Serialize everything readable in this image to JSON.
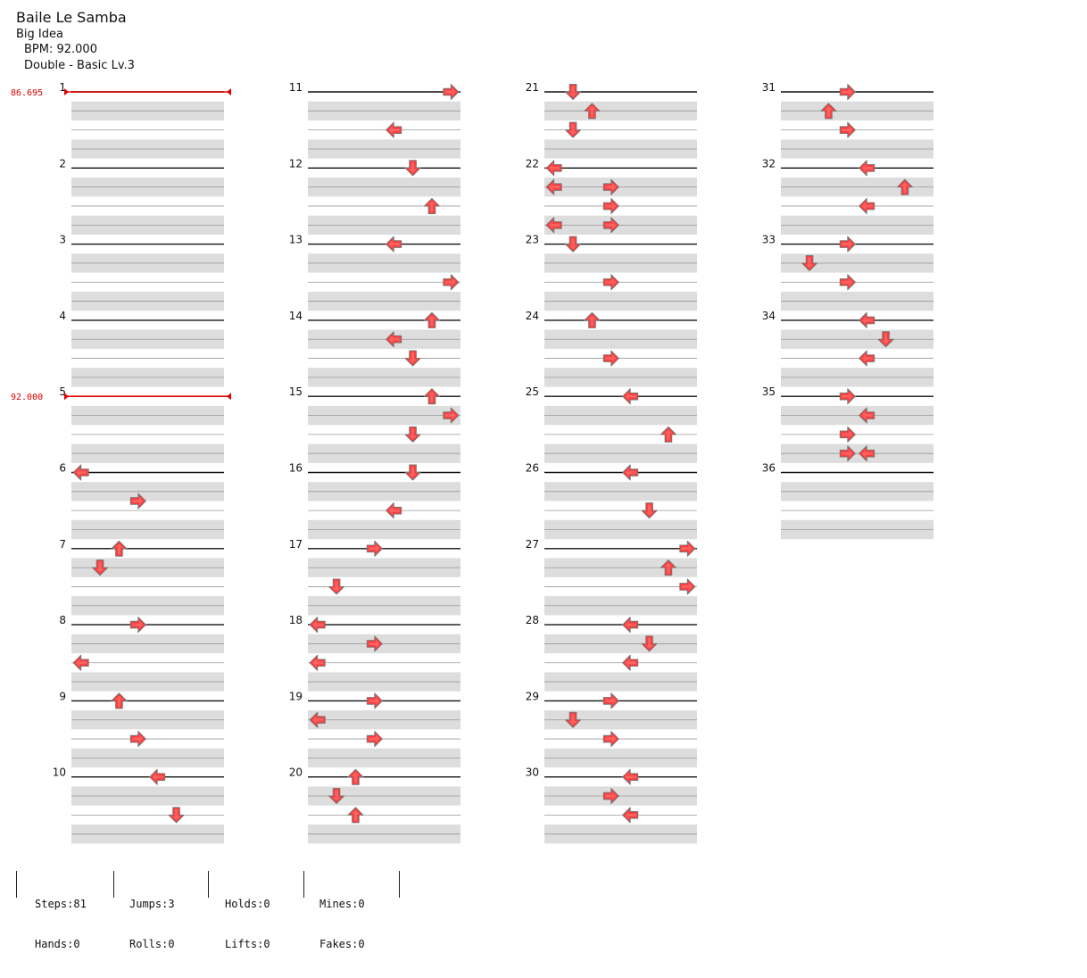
{
  "song": {
    "title": "Baile Le Samba",
    "artist": "Big Idea",
    "bpm_line": "BPM: 92.000",
    "chart_line": "Double - Basic  Lv.3"
  },
  "bpm_changes": [
    {
      "measure": 1,
      "label": "86.695"
    },
    {
      "measure": 5,
      "label": "92.000"
    }
  ],
  "measures": [
    {
      "number": "1",
      "notes": []
    },
    {
      "number": "2",
      "notes": []
    },
    {
      "number": "3",
      "notes": []
    },
    {
      "number": "4",
      "notes": []
    },
    {
      "number": "5",
      "notes": []
    },
    {
      "number": "6",
      "notes": [
        {
          "beat": 0,
          "dir": "left",
          "lane": 0
        },
        {
          "beat": 1.5,
          "dir": "right",
          "lane": 3
        }
      ]
    },
    {
      "number": "7",
      "notes": [
        {
          "beat": 0,
          "dir": "up",
          "lane": 2
        },
        {
          "beat": 1,
          "dir": "down",
          "lane": 1
        }
      ]
    },
    {
      "number": "8",
      "notes": [
        {
          "beat": 0,
          "dir": "right",
          "lane": 3
        },
        {
          "beat": 2,
          "dir": "left",
          "lane": 0
        }
      ]
    },
    {
      "number": "9",
      "notes": [
        {
          "beat": 0,
          "dir": "up",
          "lane": 2
        },
        {
          "beat": 2,
          "dir": "right",
          "lane": 3
        }
      ]
    },
    {
      "number": "10",
      "notes": [
        {
          "beat": 0,
          "dir": "left",
          "lane": 4
        },
        {
          "beat": 2,
          "dir": "down",
          "lane": 5
        }
      ]
    },
    {
      "number": "11",
      "notes": [
        {
          "beat": 0,
          "dir": "right",
          "lane": 7
        },
        {
          "beat": 2,
          "dir": "left",
          "lane": 4
        }
      ]
    },
    {
      "number": "12",
      "notes": [
        {
          "beat": 0,
          "dir": "down",
          "lane": 5
        },
        {
          "beat": 2,
          "dir": "up",
          "lane": 6
        }
      ]
    },
    {
      "number": "13",
      "notes": [
        {
          "beat": 0,
          "dir": "left",
          "lane": 4
        },
        {
          "beat": 2,
          "dir": "right",
          "lane": 7
        }
      ]
    },
    {
      "number": "14",
      "notes": [
        {
          "beat": 0,
          "dir": "up",
          "lane": 6
        },
        {
          "beat": 1,
          "dir": "left",
          "lane": 4
        },
        {
          "beat": 2,
          "dir": "down",
          "lane": 5
        }
      ]
    },
    {
      "number": "15",
      "notes": [
        {
          "beat": 0,
          "dir": "up",
          "lane": 6
        },
        {
          "beat": 1,
          "dir": "right",
          "lane": 7
        },
        {
          "beat": 2,
          "dir": "down",
          "lane": 5
        }
      ]
    },
    {
      "number": "16",
      "notes": [
        {
          "beat": 0,
          "dir": "down",
          "lane": 5
        },
        {
          "beat": 2,
          "dir": "left",
          "lane": 4
        }
      ]
    },
    {
      "number": "17",
      "notes": [
        {
          "beat": 0,
          "dir": "right",
          "lane": 3
        },
        {
          "beat": 2,
          "dir": "down",
          "lane": 1
        }
      ]
    },
    {
      "number": "18",
      "notes": [
        {
          "beat": 0,
          "dir": "left",
          "lane": 0
        },
        {
          "beat": 1,
          "dir": "right",
          "lane": 3
        },
        {
          "beat": 2,
          "dir": "left",
          "lane": 0
        }
      ]
    },
    {
      "number": "19",
      "notes": [
        {
          "beat": 0,
          "dir": "right",
          "lane": 3
        },
        {
          "beat": 1,
          "dir": "left",
          "lane": 0
        },
        {
          "beat": 2,
          "dir": "right",
          "lane": 3
        }
      ]
    },
    {
      "number": "20",
      "notes": [
        {
          "beat": 0,
          "dir": "up",
          "lane": 2
        },
        {
          "beat": 1,
          "dir": "down",
          "lane": 1
        },
        {
          "beat": 2,
          "dir": "up",
          "lane": 2
        }
      ]
    },
    {
      "number": "21",
      "notes": [
        {
          "beat": 0,
          "dir": "down",
          "lane": 1
        },
        {
          "beat": 1,
          "dir": "up",
          "lane": 2
        },
        {
          "beat": 2,
          "dir": "down",
          "lane": 1
        }
      ]
    },
    {
      "number": "22",
      "notes": [
        {
          "beat": 0,
          "dir": "left",
          "lane": 0
        },
        {
          "beat": 1,
          "dir": "left",
          "lane": 0
        },
        {
          "beat": 1,
          "dir": "right",
          "lane": 3
        },
        {
          "beat": 2,
          "dir": "right",
          "lane": 3
        },
        {
          "beat": 3,
          "dir": "left",
          "lane": 0
        },
        {
          "beat": 3,
          "dir": "right",
          "lane": 3
        }
      ]
    },
    {
      "number": "23",
      "notes": [
        {
          "beat": 0,
          "dir": "down",
          "lane": 1
        },
        {
          "beat": 2,
          "dir": "right",
          "lane": 3
        }
      ]
    },
    {
      "number": "24",
      "notes": [
        {
          "beat": 0,
          "dir": "up",
          "lane": 2
        },
        {
          "beat": 2,
          "dir": "right",
          "lane": 3
        }
      ]
    },
    {
      "number": "25",
      "notes": [
        {
          "beat": 0,
          "dir": "left",
          "lane": 4
        },
        {
          "beat": 2,
          "dir": "up",
          "lane": 6
        }
      ]
    },
    {
      "number": "26",
      "notes": [
        {
          "beat": 0,
          "dir": "left",
          "lane": 4
        },
        {
          "beat": 2,
          "dir": "down",
          "lane": 5
        }
      ]
    },
    {
      "number": "27",
      "notes": [
        {
          "beat": 0,
          "dir": "right",
          "lane": 7
        },
        {
          "beat": 1,
          "dir": "up",
          "lane": 6
        },
        {
          "beat": 2,
          "dir": "right",
          "lane": 7
        }
      ]
    },
    {
      "number": "28",
      "notes": [
        {
          "beat": 0,
          "dir": "left",
          "lane": 4
        },
        {
          "beat": 1,
          "dir": "down",
          "lane": 5
        },
        {
          "beat": 2,
          "dir": "left",
          "lane": 4
        }
      ]
    },
    {
      "number": "29",
      "notes": [
        {
          "beat": 0,
          "dir": "right",
          "lane": 3
        },
        {
          "beat": 1,
          "dir": "down",
          "lane": 1
        },
        {
          "beat": 2,
          "dir": "right",
          "lane": 3
        }
      ]
    },
    {
      "number": "30",
      "notes": [
        {
          "beat": 0,
          "dir": "left",
          "lane": 4
        },
        {
          "beat": 1,
          "dir": "right",
          "lane": 3
        },
        {
          "beat": 2,
          "dir": "left",
          "lane": 4
        }
      ]
    },
    {
      "number": "31",
      "notes": [
        {
          "beat": 0,
          "dir": "right",
          "lane": 3
        },
        {
          "beat": 1,
          "dir": "up",
          "lane": 2
        },
        {
          "beat": 2,
          "dir": "right",
          "lane": 3
        }
      ]
    },
    {
      "number": "32",
      "notes": [
        {
          "beat": 0,
          "dir": "left",
          "lane": 4
        },
        {
          "beat": 1,
          "dir": "up",
          "lane": 6
        },
        {
          "beat": 2,
          "dir": "left",
          "lane": 4
        }
      ]
    },
    {
      "number": "33",
      "notes": [
        {
          "beat": 0,
          "dir": "right",
          "lane": 3
        },
        {
          "beat": 1,
          "dir": "down",
          "lane": 1
        },
        {
          "beat": 2,
          "dir": "right",
          "lane": 3
        }
      ]
    },
    {
      "number": "34",
      "notes": [
        {
          "beat": 0,
          "dir": "left",
          "lane": 4
        },
        {
          "beat": 1,
          "dir": "down",
          "lane": 5
        },
        {
          "beat": 2,
          "dir": "left",
          "lane": 4
        }
      ]
    },
    {
      "number": "35",
      "notes": [
        {
          "beat": 0,
          "dir": "right",
          "lane": 3
        },
        {
          "beat": 1,
          "dir": "left",
          "lane": 4
        },
        {
          "beat": 2,
          "dir": "right",
          "lane": 3
        },
        {
          "beat": 3,
          "dir": "right",
          "lane": 3
        },
        {
          "beat": 3,
          "dir": "left",
          "lane": 4
        }
      ]
    },
    {
      "number": "36",
      "notes": []
    }
  ],
  "stats": {
    "steps": "Steps:81",
    "jumps": "Jumps:3",
    "holds": "Holds:0",
    "mines": "Mines:0",
    "hands": "Hands:0",
    "rolls": "Rolls:0",
    "lifts": "Lifts:0",
    "fakes": "Fakes:0"
  },
  "colors": {
    "arrow_fill": "#ff3b3b",
    "arrow_stroke": "#888888",
    "bpm_marker": "#e00000",
    "band": "#dddddd",
    "measure_line": "#111111"
  }
}
